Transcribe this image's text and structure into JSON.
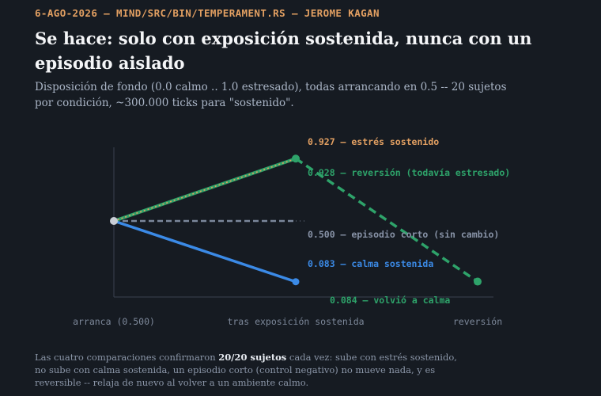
{
  "header": {
    "meta": "6-AGO-2026 — MIND/SRC/BIN/TEMPERAMENT.RS — JEROME KAGAN",
    "title": "Se hace: solo con exposición sostenida, nunca con un episodio aislado",
    "subtitle": "Disposición de fondo (0.0 calmo .. 1.0 estresado), todas arrancando en 0.5 -- 20 sujetos por condición, ~300.000 ticks para \"sostenido\"."
  },
  "chart_data": {
    "type": "line",
    "categories": [
      "arranca (0.500)",
      "tras exposición sostenida",
      "reversión"
    ],
    "ylim": [
      0,
      1
    ],
    "grid": false,
    "series": [
      {
        "name": "estrés sostenido",
        "values": [
          0.5,
          0.927,
          null
        ],
        "color": "#e3a062",
        "label": "0.927 — estrés sostenido"
      },
      {
        "name": "reversión (todavía estresado)",
        "values": [
          0.5,
          0.928,
          0.084
        ],
        "color": "#2ea36a",
        "label_mid": "0.928 — reversión (todavía estresado)",
        "label_end": "0.084 — volvió a calma"
      },
      {
        "name": "episodio corto (sin cambio)",
        "values": [
          0.5,
          0.5,
          null
        ],
        "color": "#7b879b",
        "label": "0.500 — episodio corto (sin cambio)"
      },
      {
        "name": "calma sostenida",
        "values": [
          0.5,
          0.083,
          null
        ],
        "color": "#3b8ae6",
        "label": "0.083 — calma sostenida"
      }
    ]
  },
  "footnote": {
    "before": "Las cuatro comparaciones confirmaron ",
    "bold": "20/20 sujetos",
    "after": " cada vez: sube con estrés sostenido, no sube con calma sostenida, un episodio corto (control negativo) no mueve nada, y es reversible -- relaja de nuevo al volver a un ambiente calmo."
  }
}
